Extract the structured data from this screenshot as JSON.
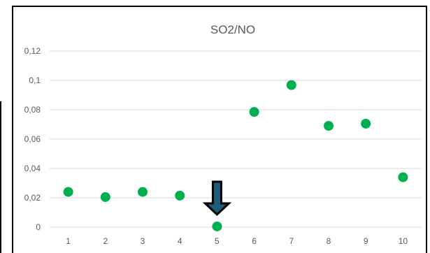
{
  "chart_data": {
    "type": "scatter",
    "title": "SO2/NO",
    "xlabel": "",
    "ylabel": "",
    "x": [
      1,
      2,
      3,
      4,
      5,
      6,
      7,
      8,
      9,
      10
    ],
    "y": [
      0.024,
      0.0205,
      0.024,
      0.0215,
      0.0005,
      0.0785,
      0.0968,
      0.069,
      0.0705,
      0.034
    ],
    "xlim": [
      0.5,
      10.5
    ],
    "ylim": [
      0,
      0.12
    ],
    "y_ticks": [
      "0",
      "0,02",
      "0,04",
      "0,06",
      "0,08",
      "0,1",
      "0,12"
    ],
    "y_tick_values": [
      0,
      0.02,
      0.04,
      0.06,
      0.08,
      0.1,
      0.12
    ],
    "x_ticks": [
      "1",
      "2",
      "3",
      "4",
      "5",
      "6",
      "7",
      "8",
      "9",
      "10"
    ],
    "grid": true,
    "marker_color": "#00b050",
    "gridline_color": "#d9d9d9",
    "annotation": {
      "type": "arrow-down",
      "target_x": 5,
      "fill": "#1f5c7a",
      "outline": "#000000"
    }
  }
}
